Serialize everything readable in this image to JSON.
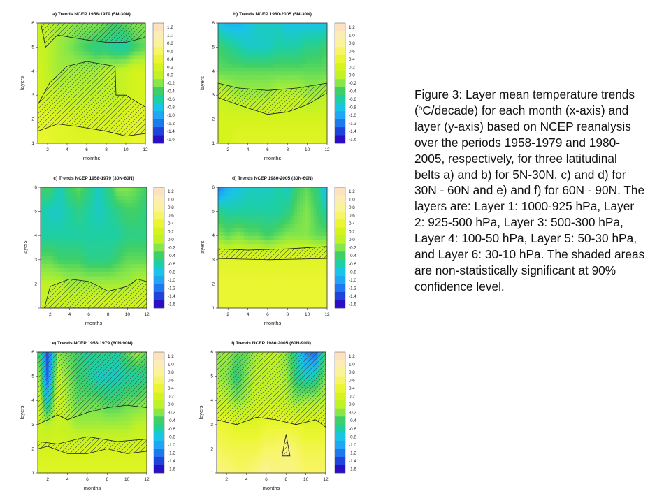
{
  "colorbar": {
    "labels": [
      "1.2",
      "1.0",
      "0.8",
      "0.6",
      "0.4",
      "0.2",
      "0.0",
      "-0.2",
      "-0.4",
      "-0.6",
      "-0.8",
      "-1.0",
      "-1.2",
      "-1.4",
      "-1.6"
    ],
    "colors": [
      "#fde2c0",
      "#fcedb4",
      "#fbf39a",
      "#f7f566",
      "#ebf632",
      "#d5f31c",
      "#bff227",
      "#86e64a",
      "#3ecf68",
      "#1ecfa3",
      "#19c4e6",
      "#1fa6f5",
      "#1f78ee",
      "#1e44db",
      "#2a0fc4"
    ]
  },
  "chart_data": [
    {
      "type": "heatmap",
      "title": "a) Trends NCEP 1958-1979 (5N-30N)",
      "xlabel": "months",
      "ylabel": "layers",
      "x": [
        1,
        2,
        3,
        4,
        5,
        6,
        7,
        8,
        9,
        10,
        11,
        12
      ],
      "y": [
        1,
        2,
        3,
        4,
        5,
        6
      ],
      "xlim": [
        1,
        12
      ],
      "ylim": [
        1,
        6
      ],
      "xticks": [
        "2",
        "4",
        "6",
        "8",
        "10",
        "12"
      ],
      "yticks": [
        "1",
        "2",
        "3",
        "4",
        "5",
        "6"
      ],
      "z": [
        [
          0.4,
          0.4,
          0.3,
          0.3,
          0.3,
          0.3,
          0.3,
          0.3,
          0.3,
          0.3,
          0.4,
          0.4
        ],
        [
          0.3,
          0.3,
          0.3,
          0.3,
          0.2,
          0.2,
          0.2,
          0.2,
          0.2,
          0.3,
          0.3,
          0.3
        ],
        [
          0.2,
          0.1,
          0.0,
          0.0,
          0.0,
          0.0,
          0.0,
          0.0,
          0.0,
          0.1,
          0.2,
          0.2
        ],
        [
          0.2,
          0.0,
          -0.1,
          -0.1,
          -0.1,
          -0.1,
          -0.1,
          0.0,
          0.0,
          0.1,
          0.2,
          0.2
        ],
        [
          0.1,
          0.0,
          -0.1,
          -0.2,
          -0.3,
          -0.4,
          -0.5,
          -0.5,
          -0.6,
          -0.6,
          -0.4,
          -0.3
        ],
        [
          0.1,
          0.0,
          -0.1,
          -0.1,
          -0.2,
          -0.2,
          -0.2,
          -0.3,
          -0.4,
          -0.3,
          -0.2,
          -0.2
        ]
      ],
      "nonsig": [
        [
          [
            1,
            1.5
          ],
          [
            3,
            1.8
          ],
          [
            5,
            1.7
          ],
          [
            8,
            1.5
          ],
          [
            10,
            1.3
          ],
          [
            12,
            1.4
          ],
          [
            12,
            2.5
          ],
          [
            10,
            3.0
          ],
          [
            9,
            3.0
          ],
          [
            8.9,
            4.2
          ],
          [
            6,
            4.4
          ],
          [
            4,
            4.2
          ],
          [
            2.2,
            3.5
          ],
          [
            1,
            2.6
          ]
        ],
        [
          [
            1.3,
            6
          ],
          [
            12,
            6
          ],
          [
            12,
            5.4
          ],
          [
            10,
            5.2
          ],
          [
            8,
            5.2
          ],
          [
            6,
            5.3
          ],
          [
            3,
            5.5
          ],
          [
            1.8,
            5.0
          ]
        ]
      ]
    },
    {
      "type": "heatmap",
      "title": "b) Trends NCEP 1980-2005 (5N-30N)",
      "xlabel": "months",
      "ylabel": "layers",
      "x": [
        1,
        2,
        3,
        4,
        5,
        6,
        7,
        8,
        9,
        10,
        11,
        12
      ],
      "y": [
        1,
        2,
        3,
        4,
        5,
        6
      ],
      "xlim": [
        1,
        12
      ],
      "ylim": [
        1,
        6
      ],
      "xticks": [
        "2",
        "4",
        "6",
        "8",
        "10",
        "12"
      ],
      "yticks": [
        "1",
        "2",
        "3",
        "4",
        "5",
        "6"
      ],
      "z": [
        [
          0.2,
          0.2,
          0.3,
          0.3,
          0.3,
          0.3,
          0.3,
          0.3,
          0.3,
          0.3,
          0.3,
          0.3
        ],
        [
          0.2,
          0.2,
          0.2,
          0.2,
          0.2,
          0.2,
          0.2,
          0.2,
          0.2,
          0.2,
          0.2,
          0.2
        ],
        [
          0.1,
          0.0,
          -0.1,
          -0.1,
          -0.1,
          -0.1,
          0.0,
          0.0,
          0.0,
          -0.1,
          -0.1,
          0.0
        ],
        [
          -0.3,
          -0.3,
          -0.3,
          -0.3,
          -0.3,
          -0.3,
          -0.3,
          -0.3,
          -0.3,
          -0.3,
          -0.3,
          -0.3
        ],
        [
          -0.4,
          -0.5,
          -0.6,
          -0.7,
          -0.7,
          -0.7,
          -0.6,
          -0.6,
          -0.6,
          -0.5,
          -0.5,
          -0.4
        ],
        [
          -0.8,
          -0.9,
          -0.9,
          -0.8,
          -0.7,
          -0.7,
          -0.7,
          -0.8,
          -0.8,
          -0.8,
          -0.8,
          -0.8
        ]
      ],
      "nonsig": [
        [
          [
            1,
            2.9
          ],
          [
            3,
            2.6
          ],
          [
            6,
            2.2
          ],
          [
            8,
            2.3
          ],
          [
            10,
            2.6
          ],
          [
            12,
            3.1
          ],
          [
            12,
            3.5
          ],
          [
            9,
            3.3
          ],
          [
            6,
            3.2
          ],
          [
            3,
            3.3
          ],
          [
            1,
            3.5
          ]
        ]
      ]
    },
    {
      "type": "heatmap",
      "title": "c) Trends NCEP 1958-1979 (30N-60N)",
      "xlabel": "months",
      "ylabel": "layers",
      "x": [
        1,
        2,
        3,
        4,
        5,
        6,
        7,
        8,
        9,
        10,
        11,
        12
      ],
      "y": [
        1,
        2,
        3,
        4,
        5,
        6
      ],
      "xlim": [
        1,
        12
      ],
      "ylim": [
        1,
        6
      ],
      "xticks": [
        "2",
        "4",
        "6",
        "8",
        "10",
        "12"
      ],
      "yticks": [
        "1",
        "2",
        "3",
        "4",
        "5",
        "6"
      ],
      "z": [
        [
          0.1,
          0.1,
          0.1,
          0.1,
          0.1,
          0.2,
          0.2,
          0.2,
          0.2,
          0.2,
          0.2,
          0.2
        ],
        [
          0.0,
          0.0,
          0.0,
          -0.1,
          -0.1,
          -0.1,
          -0.1,
          -0.1,
          -0.1,
          -0.1,
          0.0,
          0.0
        ],
        [
          -0.3,
          -0.3,
          -0.4,
          -0.4,
          -0.4,
          -0.5,
          -0.5,
          -0.5,
          -0.4,
          -0.3,
          -0.3,
          -0.3
        ],
        [
          -0.6,
          -0.6,
          -0.6,
          -0.6,
          -0.6,
          -0.6,
          -0.6,
          -0.6,
          -0.6,
          -0.5,
          -0.5,
          -0.5
        ],
        [
          -0.6,
          -0.7,
          -0.7,
          -0.6,
          -0.5,
          -0.6,
          -0.7,
          -0.6,
          -0.5,
          -0.4,
          -0.4,
          -0.5
        ],
        [
          -0.4,
          -0.4,
          -0.7,
          -0.4,
          -0.3,
          -0.5,
          -0.7,
          -0.5,
          -0.2,
          -0.2,
          -0.3,
          -0.4
        ]
      ],
      "nonsig": [
        [
          [
            1.6,
            1
          ],
          [
            12,
            1
          ],
          [
            12,
            2.1
          ],
          [
            11,
            2.2
          ],
          [
            10,
            1.9
          ],
          [
            8,
            1.7
          ],
          [
            6,
            2.1
          ],
          [
            4,
            2.2
          ],
          [
            2,
            1.9
          ],
          [
            1.4,
            1
          ]
        ]
      ]
    },
    {
      "type": "heatmap",
      "title": "d) Trends NCEP 1980-2005 (30N-60N)",
      "xlabel": "months",
      "ylabel": "layers",
      "x": [
        1,
        2,
        3,
        4,
        5,
        6,
        7,
        8,
        9,
        10,
        11,
        12
      ],
      "y": [
        1,
        2,
        3,
        4,
        5,
        6
      ],
      "xlim": [
        1,
        12
      ],
      "ylim": [
        1,
        6
      ],
      "xticks": [
        "2",
        "4",
        "6",
        "8",
        "10",
        "12"
      ],
      "yticks": [
        "1",
        "2",
        "3",
        "4",
        "5",
        "6"
      ],
      "z": [
        [
          0.4,
          0.4,
          0.4,
          0.4,
          0.4,
          0.4,
          0.4,
          0.4,
          0.4,
          0.4,
          0.4,
          0.4
        ],
        [
          0.4,
          0.4,
          0.4,
          0.4,
          0.4,
          0.4,
          0.4,
          0.4,
          0.4,
          0.4,
          0.4,
          0.4
        ],
        [
          0.3,
          0.3,
          0.3,
          0.3,
          0.3,
          0.3,
          0.3,
          0.3,
          0.3,
          0.3,
          0.3,
          0.3
        ],
        [
          -0.2,
          -0.3,
          -0.2,
          -0.3,
          -0.3,
          -0.4,
          -0.3,
          -0.2,
          -0.2,
          -0.2,
          -0.3,
          -0.3
        ],
        [
          -0.5,
          -0.6,
          -0.6,
          -0.6,
          -0.6,
          -0.6,
          -0.6,
          -0.5,
          -0.3,
          -0.2,
          -0.4,
          -0.6
        ],
        [
          -1.2,
          -0.9,
          -0.8,
          -0.7,
          -0.7,
          -0.7,
          -0.6,
          -0.7,
          -0.4,
          -0.3,
          -0.5,
          -0.9
        ]
      ],
      "nonsig": [
        [
          [
            1,
            3.05
          ],
          [
            6,
            3.0
          ],
          [
            12,
            3.05
          ],
          [
            12,
            3.55
          ],
          [
            8,
            3.45
          ],
          [
            4,
            3.4
          ],
          [
            1,
            3.45
          ]
        ]
      ]
    },
    {
      "type": "heatmap",
      "title": "e) Trends NCEP 1958-1979 (60N-90N)",
      "xlabel": "months",
      "ylabel": "layers",
      "x": [
        1,
        2,
        3,
        4,
        5,
        6,
        7,
        8,
        9,
        10,
        11,
        12
      ],
      "y": [
        1,
        2,
        3,
        4,
        5,
        6
      ],
      "xlim": [
        1,
        12
      ],
      "ylim": [
        1,
        6
      ],
      "xticks": [
        "2",
        "4",
        "6",
        "8",
        "10",
        "12"
      ],
      "yticks": [
        "1",
        "2",
        "3",
        "4",
        "5",
        "6"
      ],
      "z": [
        [
          0.3,
          0.3,
          0.3,
          0.3,
          0.3,
          0.3,
          0.3,
          0.3,
          0.3,
          0.3,
          0.3,
          0.3
        ],
        [
          0.2,
          0.2,
          0.2,
          0.2,
          0.2,
          0.2,
          0.2,
          0.2,
          0.2,
          0.2,
          0.2,
          0.2
        ],
        [
          0.1,
          0.0,
          0.1,
          0.0,
          -0.1,
          -0.1,
          -0.1,
          -0.1,
          -0.1,
          -0.1,
          0.0,
          0.0
        ],
        [
          0.2,
          -0.8,
          0.2,
          -0.1,
          -0.3,
          -0.3,
          -0.3,
          -0.4,
          -0.4,
          -0.3,
          -0.3,
          -0.2
        ],
        [
          0.0,
          -1.3,
          0.1,
          -0.2,
          -0.4,
          -0.5,
          -0.7,
          -0.7,
          -0.7,
          -0.6,
          -0.6,
          -0.5
        ],
        [
          -0.3,
          -1.4,
          -0.2,
          -0.3,
          -0.4,
          -0.6,
          -0.5,
          -0.5,
          -0.6,
          -0.3,
          -0.1,
          -0.3
        ]
      ],
      "nonsig": [
        [
          [
            1,
            3.0
          ],
          [
            3,
            3.4
          ],
          [
            4,
            3.2
          ],
          [
            6,
            3.5
          ],
          [
            8,
            3.7
          ],
          [
            10,
            3.8
          ],
          [
            12,
            3.7
          ],
          [
            12,
            6
          ],
          [
            1,
            6
          ]
        ],
        [
          [
            1,
            2.3
          ],
          [
            3,
            2.2
          ],
          [
            6,
            2.5
          ],
          [
            9,
            2.3
          ],
          [
            12,
            2.4
          ],
          [
            12,
            1.9
          ],
          [
            10,
            1.8
          ],
          [
            8,
            2.0
          ],
          [
            6,
            1.8
          ],
          [
            4,
            1.8
          ],
          [
            2,
            2.1
          ],
          [
            1,
            2.0
          ]
        ]
      ]
    },
    {
      "type": "heatmap",
      "title": "f) Trends NCEP 1980-2005 (60N-90N)",
      "xlabel": "months",
      "ylabel": "layers",
      "x": [
        1,
        2,
        3,
        4,
        5,
        6,
        7,
        8,
        9,
        10,
        11,
        12
      ],
      "y": [
        1,
        2,
        3,
        4,
        5,
        6
      ],
      "xlim": [
        1,
        12
      ],
      "ylim": [
        1,
        6
      ],
      "xticks": [
        "2",
        "4",
        "6",
        "8",
        "10",
        "12"
      ],
      "yticks": [
        "1",
        "2",
        "3",
        "4",
        "5",
        "6"
      ],
      "z": [
        [
          0.7,
          0.7,
          0.6,
          0.6,
          0.7,
          0.8,
          0.7,
          0.7,
          0.7,
          0.6,
          0.6,
          0.6
        ],
        [
          0.6,
          0.5,
          0.5,
          0.5,
          0.5,
          0.6,
          0.6,
          0.7,
          0.6,
          0.5,
          0.5,
          0.5
        ],
        [
          0.4,
          0.4,
          0.3,
          0.3,
          0.3,
          0.4,
          0.4,
          0.4,
          0.4,
          0.3,
          0.3,
          0.3
        ],
        [
          0.1,
          0.0,
          -0.2,
          -0.1,
          0.1,
          0.1,
          0.1,
          0.0,
          -0.2,
          -0.1,
          -0.1,
          0.0
        ],
        [
          -0.1,
          -0.2,
          -0.5,
          -0.2,
          0.0,
          0.0,
          0.0,
          -0.1,
          -0.5,
          -0.7,
          -0.6,
          -0.2
        ],
        [
          -0.2,
          -0.1,
          -0.3,
          -0.3,
          -0.1,
          0.0,
          0.0,
          -0.2,
          -0.6,
          -1.1,
          -1.3,
          -0.3
        ]
      ],
      "nonsig": [
        [
          [
            1,
            3.2
          ],
          [
            3,
            3.0
          ],
          [
            5,
            3.3
          ],
          [
            7,
            3.2
          ],
          [
            9,
            3.0
          ],
          [
            11,
            3.2
          ],
          [
            12,
            2.9
          ],
          [
            12,
            6
          ],
          [
            1,
            6
          ]
        ],
        [
          [
            7.6,
            1.7
          ],
          [
            8.0,
            2.6
          ],
          [
            8.4,
            1.7
          ]
        ]
      ]
    }
  ],
  "caption": {
    "part1": "Figure 3: Layer mean temperature trends (",
    "superscript": "o",
    "part2": "C/decade) for each month (x-axis) and layer (y-axis) based on NCEP reanalysis over the periods 1958-1979 and 1980-2005, respectively, for three latitudinal belts a) and b) for 5N-30N, c) and d) for 30N - 60N and e) and f) for 60N - 90N. The layers are: Layer 1: 1000-925 hPa, Layer 2: 925-500 hPa, Layer 3: 500-300 hPa, Layer 4: 100-50 hPa, Layer 5: 50-30 hPa, and Layer 6: 30-10 hPa. The shaded areas are non-statistically significant at 90% confidence level."
  }
}
